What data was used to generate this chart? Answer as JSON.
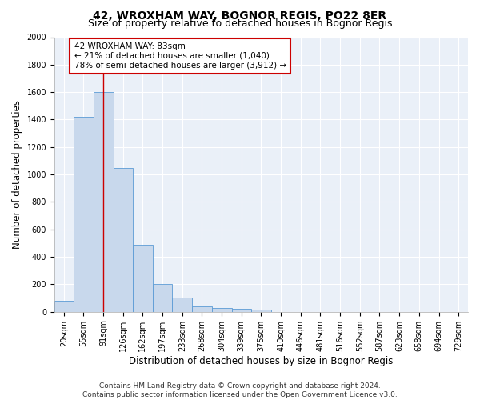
{
  "title": "42, WROXHAM WAY, BOGNOR REGIS, PO22 8ER",
  "subtitle": "Size of property relative to detached houses in Bognor Regis",
  "xlabel": "Distribution of detached houses by size in Bognor Regis",
  "ylabel": "Number of detached properties",
  "footer_line1": "Contains HM Land Registry data © Crown copyright and database right 2024.",
  "footer_line2": "Contains public sector information licensed under the Open Government Licence v3.0.",
  "bin_labels": [
    "20sqm",
    "55sqm",
    "91sqm",
    "126sqm",
    "162sqm",
    "197sqm",
    "233sqm",
    "268sqm",
    "304sqm",
    "339sqm",
    "375sqm",
    "410sqm",
    "446sqm",
    "481sqm",
    "516sqm",
    "552sqm",
    "587sqm",
    "623sqm",
    "658sqm",
    "694sqm",
    "729sqm"
  ],
  "bin_edges_raw": [
    2.5,
    37.5,
    72.5,
    108.5,
    143.5,
    179.5,
    214.5,
    250.5,
    285.5,
    321.5,
    356.5,
    392.5,
    427.5,
    463.5,
    498.5,
    534.5,
    569.5,
    605.5,
    640.5,
    676.5,
    711.5,
    746.5
  ],
  "bar_heights": [
    80,
    1420,
    1600,
    1050,
    490,
    200,
    105,
    40,
    25,
    20,
    15,
    0,
    0,
    0,
    0,
    0,
    0,
    0,
    0,
    0,
    0
  ],
  "bar_color": "#c8d8ec",
  "bar_edge_color": "#5b9bd5",
  "red_line_x": 91,
  "annotation_line1": "42 WROXHAM WAY: 83sqm",
  "annotation_line2": "← 21% of detached houses are smaller (1,040)",
  "annotation_line3": "78% of semi-detached houses are larger (3,912) →",
  "annotation_box_color": "#ffffff",
  "annotation_box_edge_color": "#cc0000",
  "ylim": [
    0,
    2000
  ],
  "yticks": [
    0,
    200,
    400,
    600,
    800,
    1000,
    1200,
    1400,
    1600,
    1800,
    2000
  ],
  "background_color": "#eaf0f8",
  "grid_color": "#ffffff",
  "title_fontsize": 10,
  "subtitle_fontsize": 9,
  "axis_label_fontsize": 8.5,
  "tick_fontsize": 7,
  "annotation_fontsize": 7.5,
  "footer_fontsize": 6.5
}
